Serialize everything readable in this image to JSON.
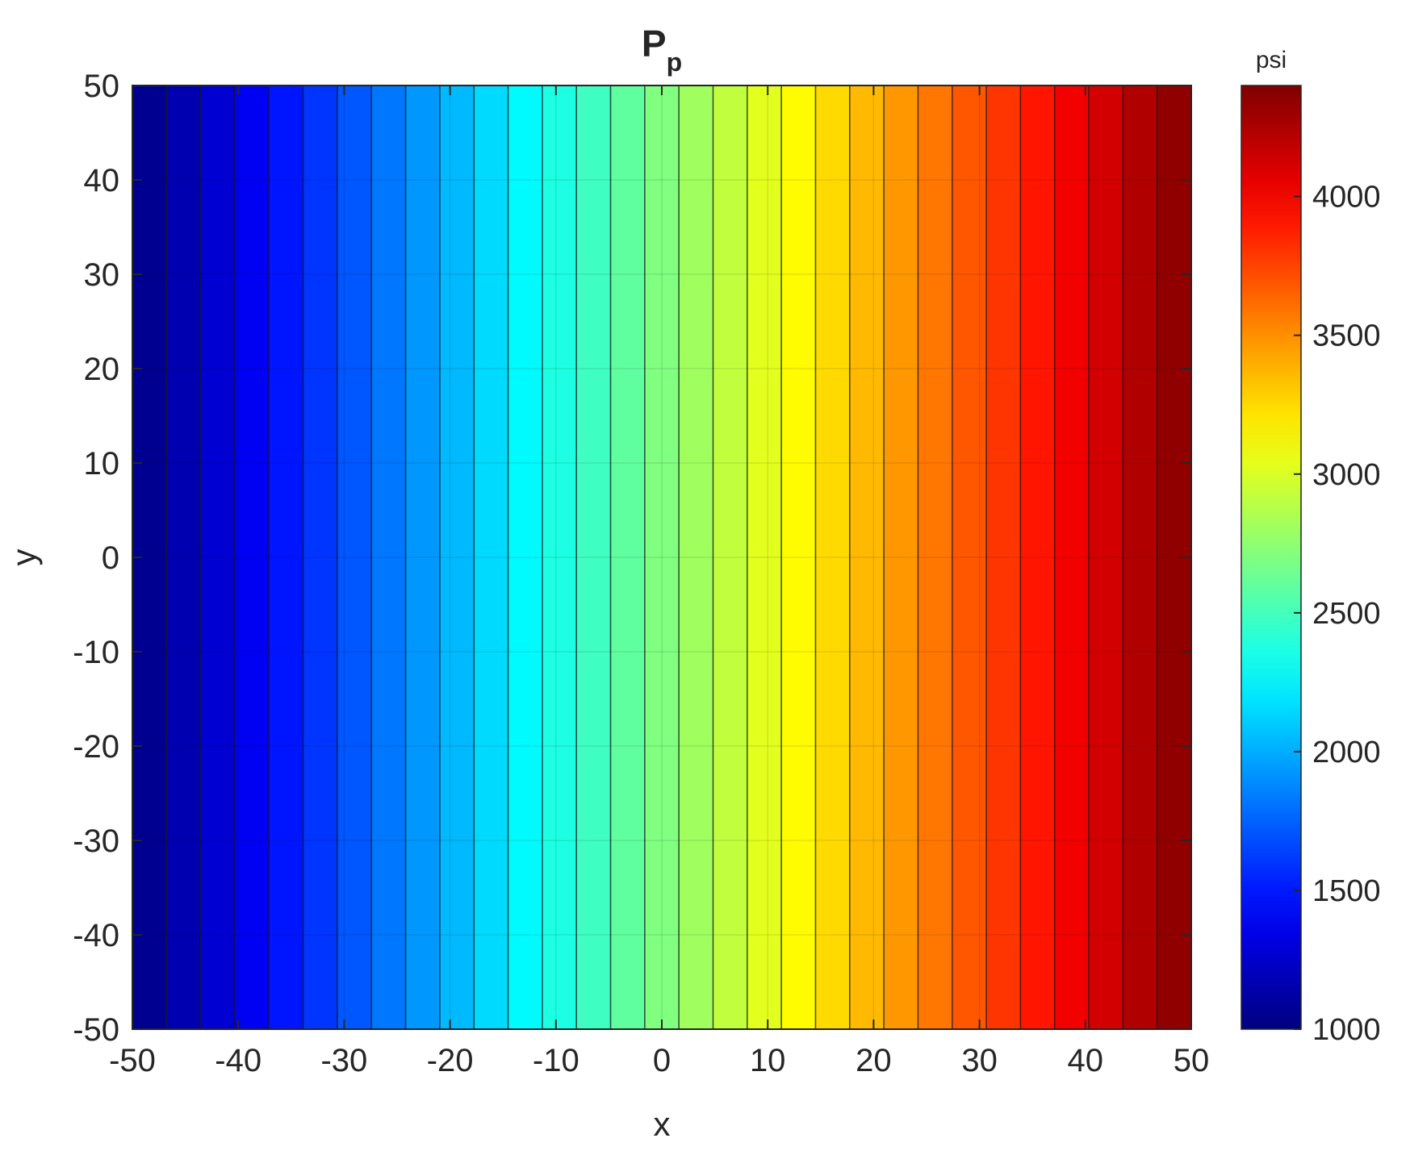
{
  "chart_data": {
    "type": "heatmap",
    "subtype": "filled contour",
    "title": "P",
    "title_subscript": "p",
    "xlabel": "x",
    "ylabel": "y",
    "xlim": [
      -50,
      50
    ],
    "ylim": [
      -50,
      50
    ],
    "xticks": [
      -50,
      -40,
      -30,
      -20,
      -10,
      0,
      10,
      20,
      30,
      40,
      50
    ],
    "yticks": [
      -50,
      -40,
      -30,
      -20,
      -10,
      0,
      10,
      20,
      30,
      40,
      50
    ],
    "grid": true,
    "field": "varies linearly with x only; constant along y",
    "value_at_x_min": 1000,
    "value_at_x_max": 4400,
    "contour_levels": 31,
    "colormap": "jet",
    "colorbar": {
      "label": "psi",
      "range": [
        1000,
        4400
      ],
      "ticks": [
        1000,
        1500,
        2000,
        2500,
        3000,
        3500,
        4000
      ],
      "tick_labels": [
        "1000",
        "1500",
        "2000",
        "2500",
        "3000",
        "3500",
        "4000"
      ],
      "placement": "right"
    }
  }
}
